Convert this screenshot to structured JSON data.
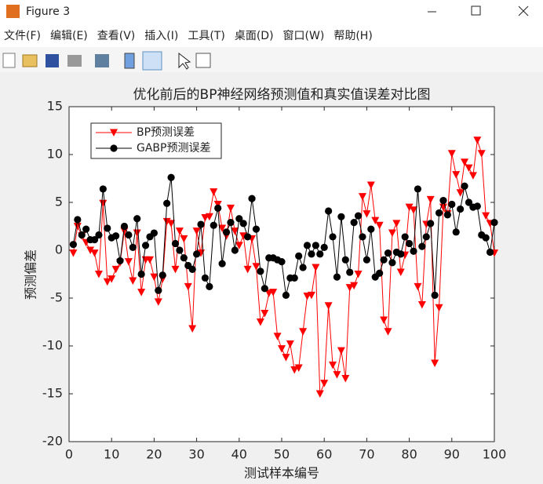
{
  "window": {
    "title": "Figure 3",
    "menu": [
      "文件(F)",
      "编辑(E)",
      "查看(V)",
      "插入(I)",
      "工具(T)",
      "桌面(D)",
      "窗口(W)",
      "帮助(H)"
    ]
  },
  "chart_data": {
    "type": "line",
    "title": "优化前后的BP神经网络预测值和真实值误差对比图",
    "x_label": "测试样本编号",
    "y_label": "预测偏差",
    "x": [
      1,
      2,
      3,
      4,
      5,
      6,
      7,
      8,
      9,
      10,
      11,
      12,
      13,
      14,
      15,
      16,
      17,
      18,
      19,
      20,
      21,
      22,
      23,
      24,
      25,
      26,
      27,
      28,
      29,
      30,
      31,
      32,
      33,
      34,
      35,
      36,
      37,
      38,
      39,
      40,
      41,
      42,
      43,
      44,
      45,
      46,
      47,
      48,
      49,
      50,
      51,
      52,
      53,
      54,
      55,
      56,
      57,
      58,
      59,
      60,
      61,
      62,
      63,
      64,
      65,
      66,
      67,
      68,
      69,
      70,
      71,
      72,
      73,
      74,
      75,
      76,
      77,
      78,
      79,
      80,
      81,
      82,
      83,
      84,
      85,
      86,
      87,
      88,
      89,
      90,
      91,
      92,
      93,
      94,
      95,
      96,
      97,
      98,
      99,
      100
    ],
    "series": [
      {
        "name": "BP预测误差",
        "color": "#ff0000",
        "marker": "triangle-down",
        "values": [
          -0.3,
          2.5,
          1.5,
          0.8,
          0,
          -0.3,
          -2.5,
          4.9,
          -3.3,
          -3,
          -2,
          -1.3,
          2,
          -1.2,
          -3.2,
          1.8,
          -4.4,
          -1,
          -1,
          -2.8,
          -5.4,
          -3,
          3,
          2.8,
          -2,
          2,
          1.2,
          -3.8,
          -8.2,
          2,
          -0.3,
          3.4,
          3.5,
          6.1,
          4.8,
          2.3,
          1.5,
          4.4,
          2,
          0.5,
          1.5,
          -2,
          1.2,
          -1.7,
          -7.5,
          -6.6,
          -4.5,
          -4.4,
          -9,
          -10.3,
          -11.2,
          -9.8,
          -12.5,
          -12.3,
          -8.5,
          -4.8,
          -4.7,
          -1.8,
          -15,
          -13.9,
          -5.8,
          -12,
          -13,
          -10.5,
          -13.4,
          -3.9,
          -3.7,
          -2.5,
          5.6,
          3.8,
          6.8,
          3.1,
          2.6,
          -7.3,
          -8.5,
          1.8,
          2.8,
          -2.3,
          -0.5,
          4.5,
          4.2,
          -3.8,
          -5.7,
          2.7,
          5.3,
          -11.8,
          -6,
          4.5,
          3.8,
          10.1,
          7.9,
          6,
          9.2,
          8.6,
          7.8,
          11.5,
          10.1,
          3.6,
          2.8,
          -0.3
        ]
      },
      {
        "name": "GABP预测误差",
        "color": "#000000",
        "marker": "circle",
        "values": [
          0.6,
          3.2,
          1.6,
          2.2,
          1.1,
          1.1,
          1.6,
          6.4,
          2.3,
          1.3,
          1.5,
          -1.1,
          2.5,
          1.6,
          0.3,
          3.3,
          -2.5,
          0.5,
          1.4,
          1.8,
          -4.2,
          -2.6,
          4.9,
          7.6,
          0.7,
          0,
          -0.8,
          -1.6,
          -2,
          -0.4,
          2.7,
          -2.9,
          -3.8,
          2.6,
          4.4,
          -1.4,
          1.9,
          2.9,
          0,
          3.3,
          2.8,
          1.4,
          5.4,
          2.2,
          -2.2,
          -4,
          -0.8,
          -0.8,
          -1,
          -1.2,
          -4.7,
          -2.9,
          -2.9,
          -0.6,
          -1.8,
          0.5,
          -0.4,
          0.5,
          -0.4,
          0.3,
          4.1,
          1.4,
          -2.8,
          3.5,
          -1,
          -2.3,
          2.9,
          3.6,
          1.4,
          -1,
          2.2,
          -2.8,
          -2.4,
          -1,
          -0.3,
          -1.3,
          -0.2,
          -0.4,
          1.4,
          0.7,
          -0.1,
          6.4,
          0.4,
          1.4,
          2.8,
          -4.7,
          3.9,
          5.2,
          3.7,
          4.8,
          1.9,
          4.3,
          6.7,
          5,
          4.5,
          4.6,
          1.6,
          1.3,
          -0.2,
          2.9
        ]
      }
    ],
    "xlim": [
      0,
      100
    ],
    "xticks": [
      0,
      10,
      20,
      30,
      40,
      50,
      60,
      70,
      80,
      90,
      100
    ],
    "ylim": [
      -20,
      15
    ],
    "yticks": [
      -20,
      -15,
      -10,
      -5,
      0,
      5,
      10,
      15
    ],
    "grid": false,
    "legend": "northwest"
  }
}
